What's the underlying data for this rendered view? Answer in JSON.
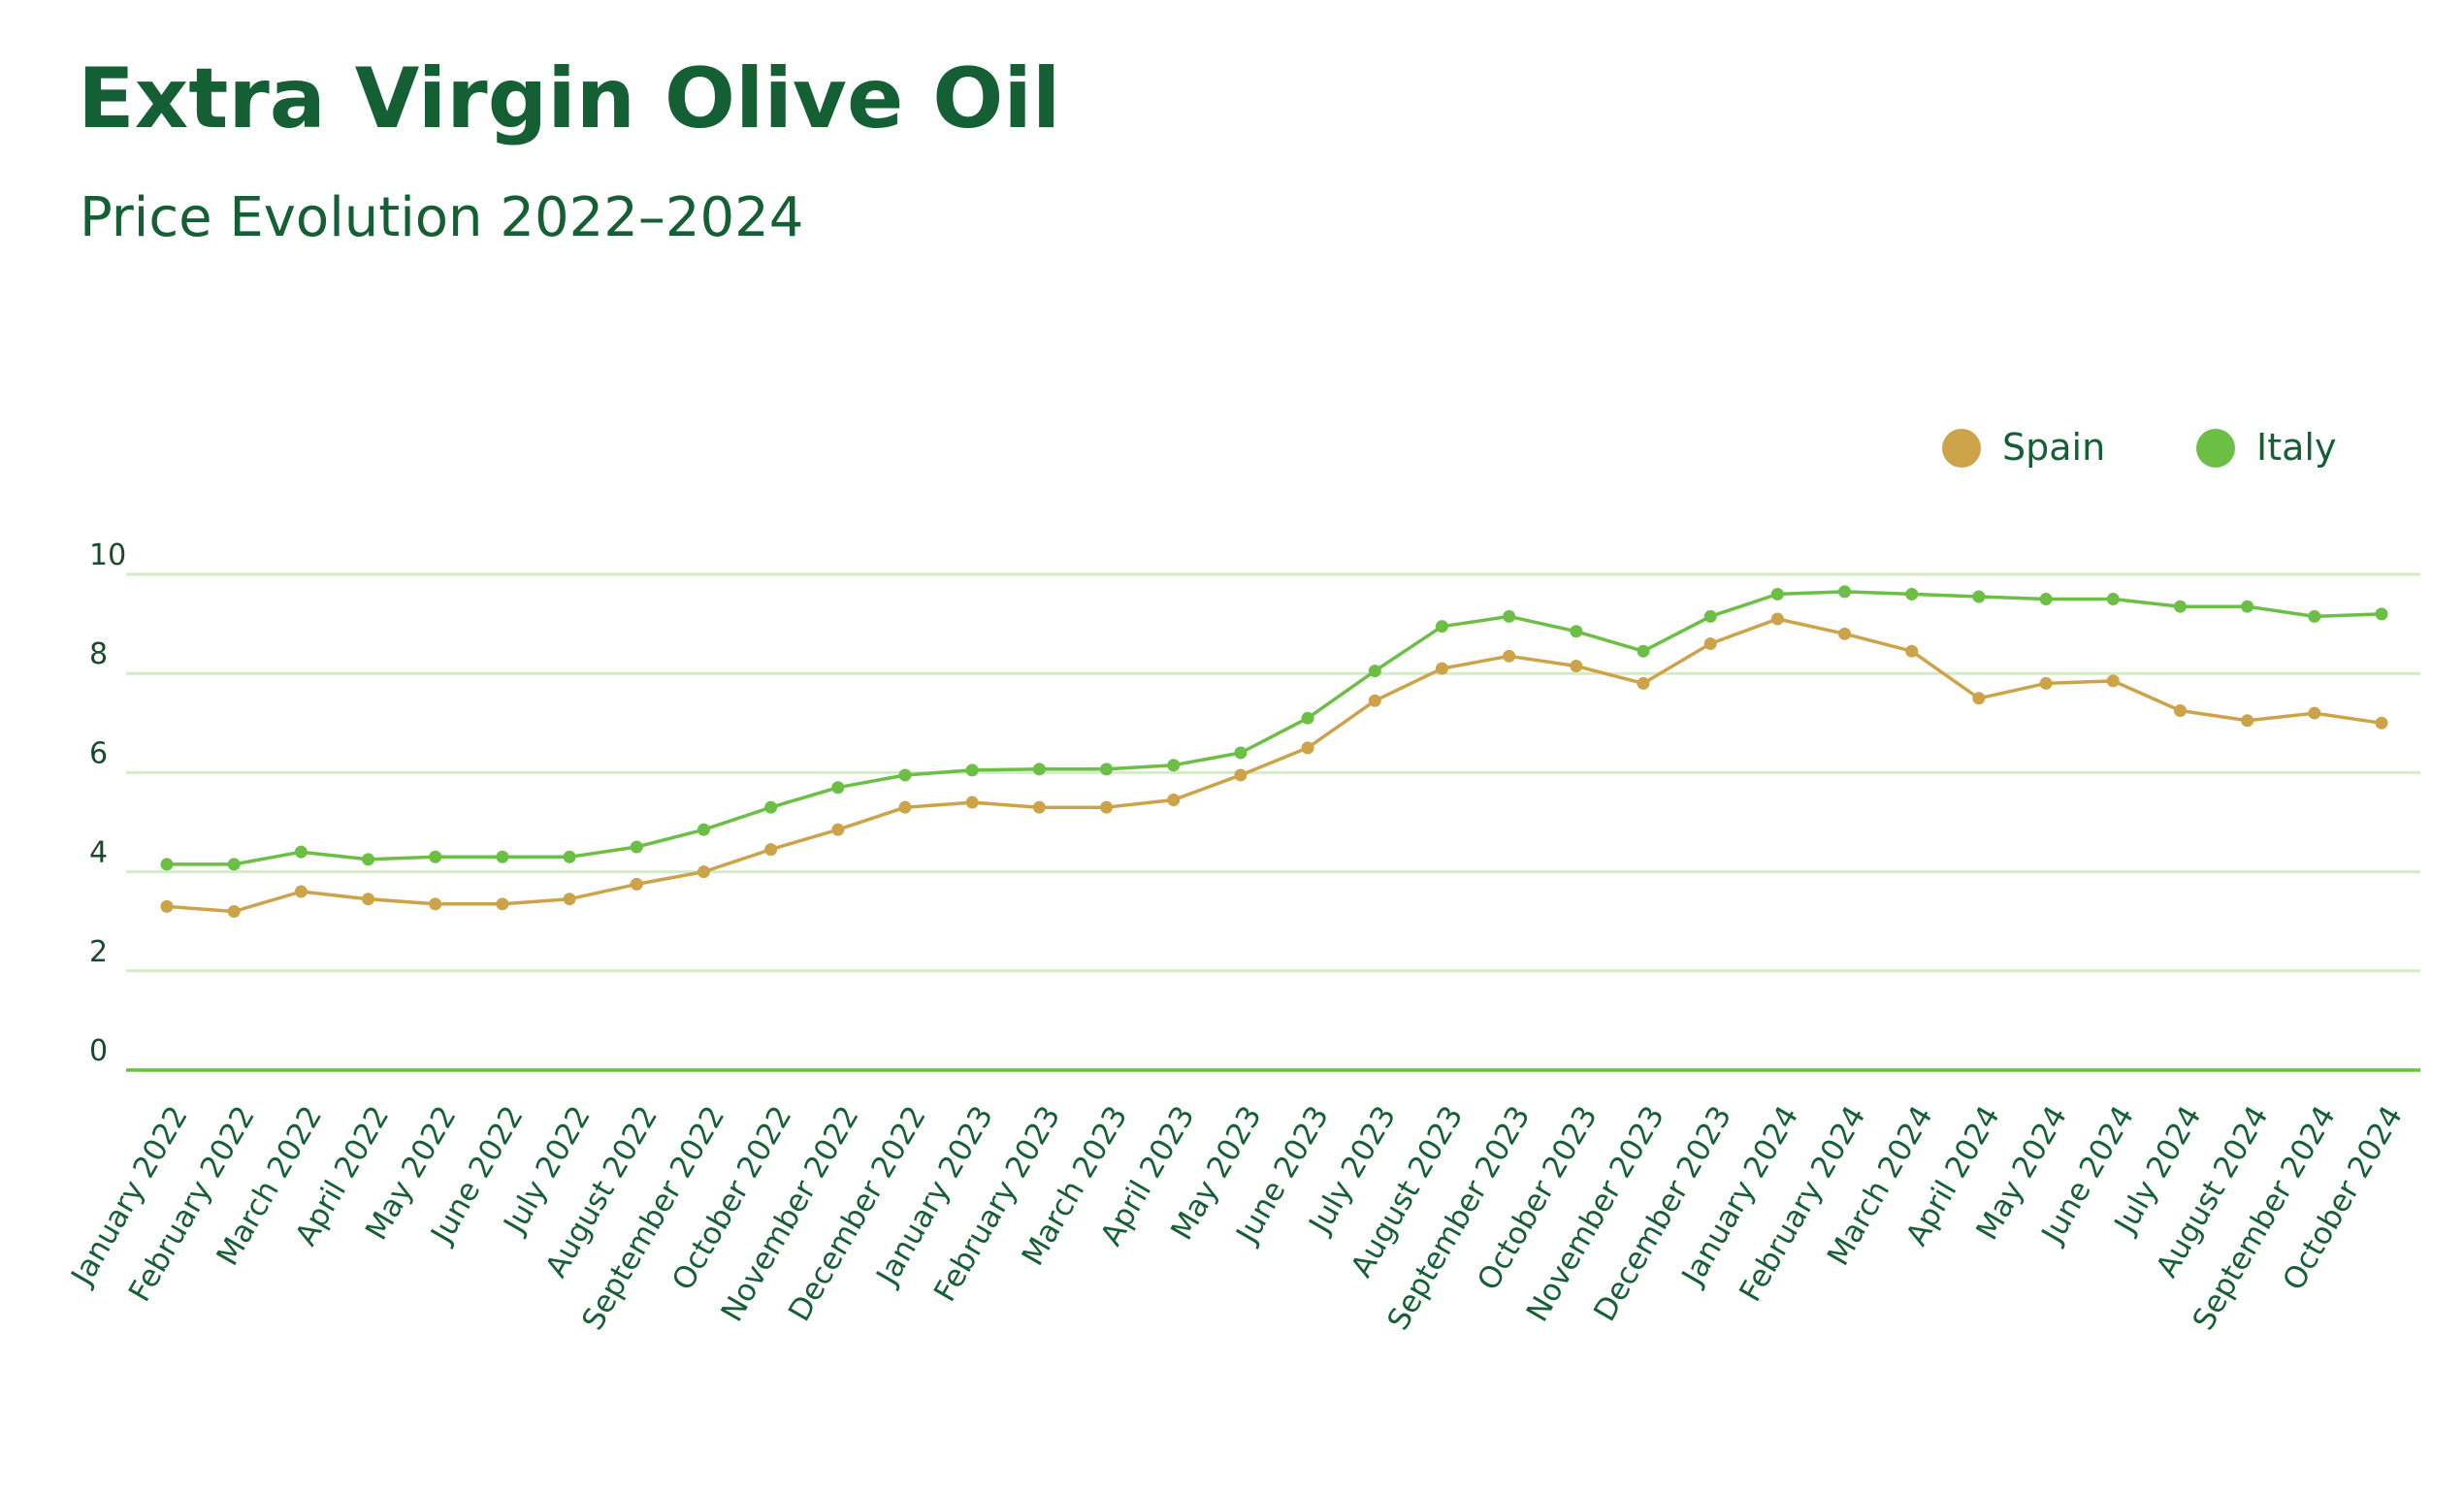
{
  "chart_data": {
    "type": "line",
    "title": "Extra Virgin Olive Oil",
    "subtitle": "Price Evolution 2022–2024",
    "xlabel": "",
    "ylabel": "",
    "ylim": [
      0,
      10
    ],
    "yticks": [
      0,
      2,
      4,
      6,
      8,
      10
    ],
    "grid": true,
    "legend": "top-right",
    "categories": [
      "January 2022",
      "February 2022",
      "March 2022",
      "April 2022",
      "May 2022",
      "June 2022",
      "July 2022",
      "August 2022",
      "September 2022",
      "October 2022",
      "November 2022",
      "December 2022",
      "January 2023",
      "February 2023",
      "March 2023",
      "April 2023",
      "May 2023",
      "June 2023",
      "July 2023",
      "August 2023",
      "September 2023",
      "October 2023",
      "November 2023",
      "December 2023",
      "January 2024",
      "February 2024",
      "March 2024",
      "April 2024",
      "May 2024",
      "June 2024",
      "July 2024",
      "August 2024",
      "September 2024",
      "October 2024"
    ],
    "series": [
      {
        "name": "Spain",
        "color": "#cda34a",
        "values": [
          3.3,
          3.2,
          3.6,
          3.45,
          3.35,
          3.35,
          3.45,
          3.75,
          4.0,
          4.45,
          4.85,
          5.3,
          5.4,
          5.3,
          5.3,
          5.45,
          5.95,
          6.5,
          7.45,
          8.1,
          8.35,
          8.15,
          7.8,
          8.6,
          9.1,
          8.8,
          8.45,
          7.5,
          7.8,
          7.85,
          7.25,
          7.05,
          7.2,
          7.0
        ]
      },
      {
        "name": "Italy",
        "color": "#6cbf45",
        "values": [
          4.15,
          4.15,
          4.4,
          4.25,
          4.3,
          4.3,
          4.3,
          4.5,
          4.85,
          5.3,
          5.7,
          5.95,
          6.05,
          6.07,
          6.07,
          6.15,
          6.4,
          7.1,
          8.05,
          8.95,
          9.15,
          8.85,
          8.45,
          9.15,
          9.6,
          9.65,
          9.6,
          9.55,
          9.5,
          9.5,
          9.35,
          9.35,
          9.15,
          9.2
        ]
      }
    ]
  },
  "colors": {
    "heading": "#155f35",
    "grid": "#d3ecc6",
    "baseline": "#6cbf45",
    "tick_label": "#1a4a2e"
  }
}
